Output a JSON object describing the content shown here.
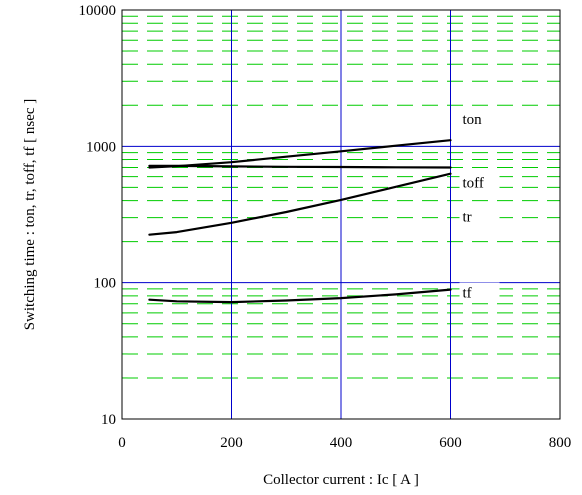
{
  "chart_data": {
    "type": "line",
    "xlabel": "Collector current  :  Ic  [ A ]",
    "ylabel": "Switching time  :  ton, tr, toff, tf  [  nsec ]",
    "xlim": [
      0,
      800
    ],
    "ylim": [
      10,
      10000
    ],
    "y_scale": "log",
    "x_ticks": [
      "0",
      "200",
      "400",
      "600",
      "800"
    ],
    "y_ticks": [
      "10",
      "100",
      "1000",
      "10000"
    ],
    "grid": true,
    "colors": {
      "major_grid": "#0000cc",
      "minor_grid": "#00cc00",
      "series_line": "#000000"
    },
    "series": [
      {
        "name": "ton",
        "x": [
          50,
          100,
          200,
          300,
          400,
          500,
          600
        ],
        "y": [
          700,
          715,
          765,
          840,
          920,
          1010,
          1110
        ]
      },
      {
        "name": "toff",
        "x": [
          50,
          100,
          200,
          300,
          400,
          500,
          600
        ],
        "y": [
          720,
          718,
          712,
          708,
          705,
          702,
          700
        ]
      },
      {
        "name": "tr",
        "x": [
          50,
          100,
          200,
          300,
          400,
          500,
          600
        ],
        "y": [
          225,
          235,
          275,
          330,
          405,
          505,
          630
        ]
      },
      {
        "name": "tf",
        "x": [
          50,
          100,
          200,
          300,
          400,
          500,
          600
        ],
        "y": [
          75,
          73,
          72,
          74,
          77,
          82,
          89
        ]
      }
    ]
  }
}
